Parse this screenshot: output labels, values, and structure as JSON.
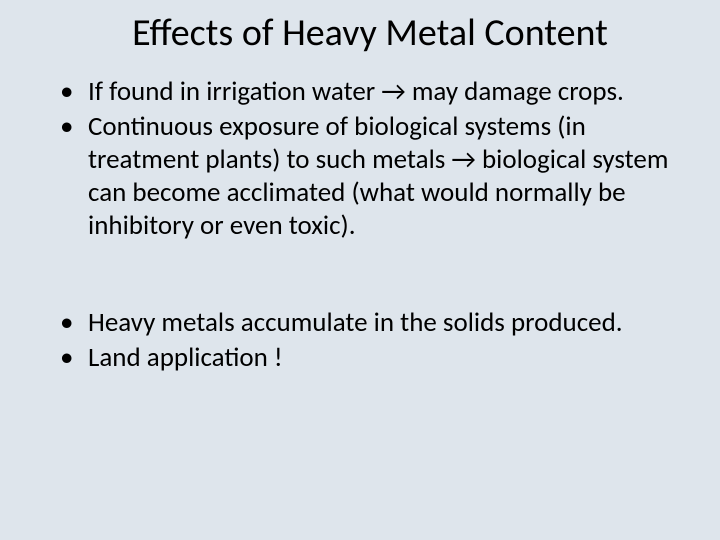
{
  "background_color": "#dee5ec",
  "text_color": "#000000",
  "title": {
    "text": "Effects of Heavy Metal Content",
    "fontsize": 38
  },
  "body_fontsize": 27,
  "bullets_group1": [
    "If found in irrigation water → may damage crops.",
    "Continuous exposure of biological systems (in treatment plants) to such metals → biological system can become acclimated (what would normally be inhibitory or even toxic)."
  ],
  "bullets_group2": [
    "Heavy metals accumulate in the solids produced.",
    "Land application !"
  ]
}
